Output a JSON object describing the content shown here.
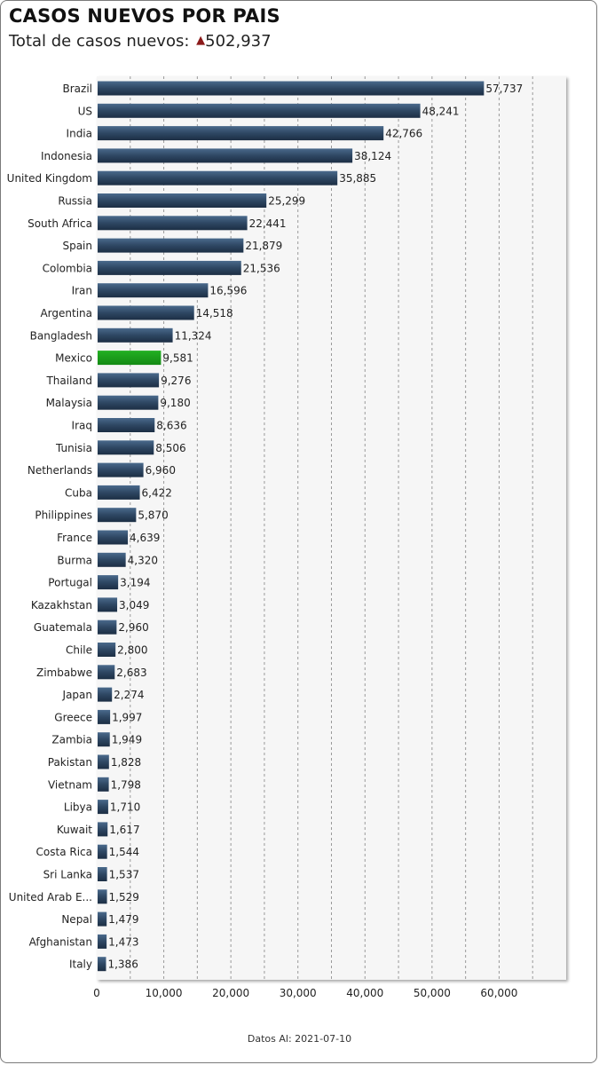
{
  "header": {
    "title": "CASOS NUEVOS POR PAIS",
    "subtitle_label": "Total de casos nuevos:",
    "subtitle_value": "502,937",
    "trend_icon": "triangle-up-icon"
  },
  "footer": {
    "text": "Datos Al: 2021-07-10"
  },
  "colors": {
    "bar": "#2e4763",
    "bar_highlight": "#1a9c1a",
    "plot_background": "#f6f6f6",
    "trend_up": "#8b1a1a"
  },
  "chart_data": {
    "type": "bar",
    "orientation": "horizontal",
    "title": "CASOS NUEVOS POR PAIS",
    "highlight": "Mexico",
    "grid": true,
    "xlim": [
      0,
      70000
    ],
    "xticks": [
      "0",
      "10,000",
      "20,000",
      "30,000",
      "40,000",
      "50,000",
      "60,000"
    ],
    "categories": [
      "Brazil",
      "US",
      "India",
      "Indonesia",
      "United Kingdom",
      "Russia",
      "South Africa",
      "Spain",
      "Colombia",
      "Iran",
      "Argentina",
      "Bangladesh",
      "Mexico",
      "Thailand",
      "Malaysia",
      "Iraq",
      "Tunisia",
      "Netherlands",
      "Cuba",
      "Philippines",
      "France",
      "Burma",
      "Portugal",
      "Kazakhstan",
      "Guatemala",
      "Chile",
      "Zimbabwe",
      "Japan",
      "Greece",
      "Zambia",
      "Pakistan",
      "Vietnam",
      "Libya",
      "Kuwait",
      "Costa Rica",
      "Sri Lanka",
      "United Arab E...",
      "Nepal",
      "Afghanistan",
      "Italy"
    ],
    "values": [
      57737,
      48241,
      42766,
      38124,
      35885,
      25299,
      22441,
      21879,
      21536,
      16596,
      14518,
      11324,
      9581,
      9276,
      9180,
      8636,
      8506,
      6960,
      6422,
      5870,
      4639,
      4320,
      3194,
      3049,
      2960,
      2800,
      2683,
      2274,
      1997,
      1949,
      1828,
      1798,
      1710,
      1617,
      1544,
      1537,
      1529,
      1479,
      1473,
      1386
    ],
    "value_labels": [
      "57,737",
      "48,241",
      "42,766",
      "38,124",
      "35,885",
      "25,299",
      "22,441",
      "21,879",
      "21,536",
      "16,596",
      "14,518",
      "11,324",
      "9,581",
      "9,276",
      "9,180",
      "8,636",
      "8,506",
      "6,960",
      "6,422",
      "5,870",
      "4,639",
      "4,320",
      "3,194",
      "3,049",
      "2,960",
      "2,800",
      "2,683",
      "2,274",
      "1,997",
      "1,949",
      "1,828",
      "1,798",
      "1,710",
      "1,617",
      "1,544",
      "1,537",
      "1,529",
      "1,479",
      "1,473",
      "1,386"
    ]
  }
}
